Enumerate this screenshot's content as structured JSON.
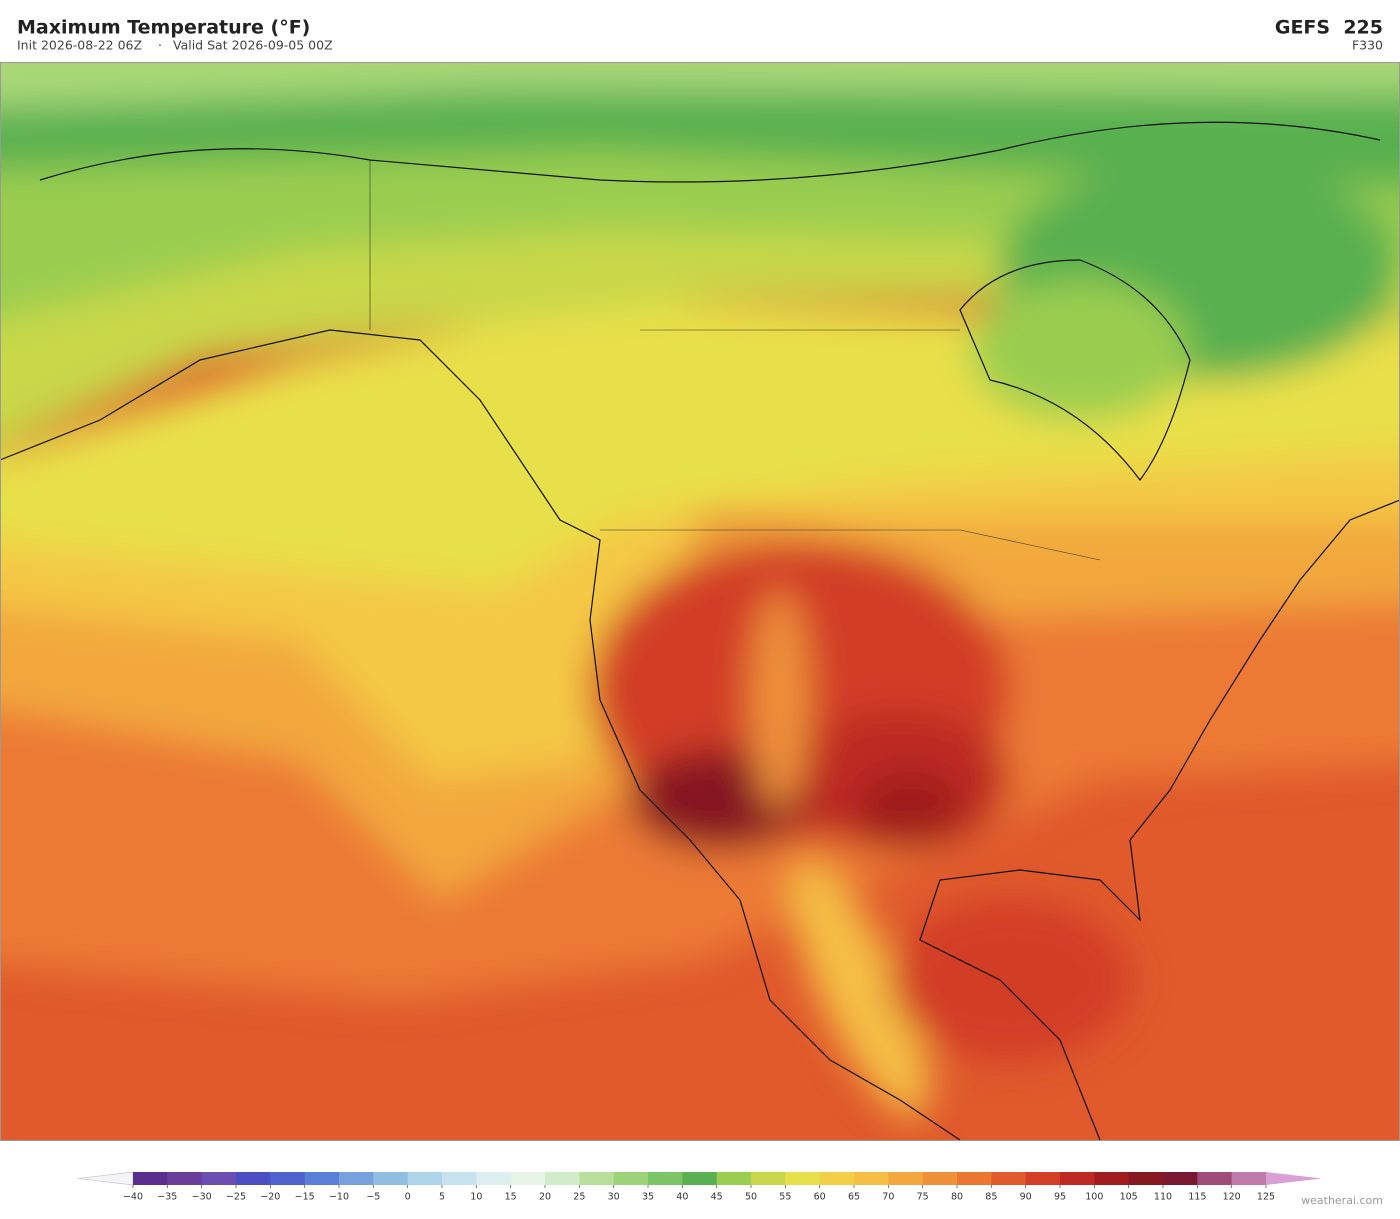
{
  "header": {
    "title": "Maximum Temperature  (°F)",
    "init": "Init 2026-08-22 06Z",
    "valid": "Valid Sat 2026-09-05 00Z",
    "model": "GEFS  225",
    "forecast_hour": "F330"
  },
  "colorbar": {
    "ticks": [
      {
        "value": -40,
        "label": "−40"
      },
      {
        "value": -35,
        "label": "−35"
      },
      {
        "value": -30,
        "label": "−30"
      },
      {
        "value": -25,
        "label": "−25"
      },
      {
        "value": -20,
        "label": "−20"
      },
      {
        "value": -15,
        "label": "−15"
      },
      {
        "value": -10,
        "label": "−10"
      },
      {
        "value": -5,
        "label": "−5"
      },
      0,
      5,
      10,
      15,
      20,
      25,
      30,
      35,
      40,
      45,
      50,
      55,
      60,
      65,
      70,
      75,
      80,
      85,
      90,
      95,
      100,
      105,
      110,
      115,
      120,
      125
    ],
    "colors": [
      "#5b2d8e",
      "#6a3d9a",
      "#6a4fb0",
      "#4a4fc4",
      "#4f63cf",
      "#5b7ed6",
      "#77a0dc",
      "#91bde3",
      "#aed4ea",
      "#c6e3ef",
      "#ddeff1",
      "#e8f4e8",
      "#d0ecc8",
      "#b8e09c",
      "#9dd47a",
      "#7cc468",
      "#58b050",
      "#9acd50",
      "#c8d84a",
      "#e8e04a",
      "#f1d048",
      "#f4bf44",
      "#f2a83e",
      "#ee913a",
      "#ea7632",
      "#e05a2c",
      "#d23e26",
      "#bd2a22",
      "#a01c1e",
      "#861820",
      "#7a1a32",
      "#a04c7a",
      "#c07aaa"
    ]
  },
  "credit": "weatherai.com"
}
